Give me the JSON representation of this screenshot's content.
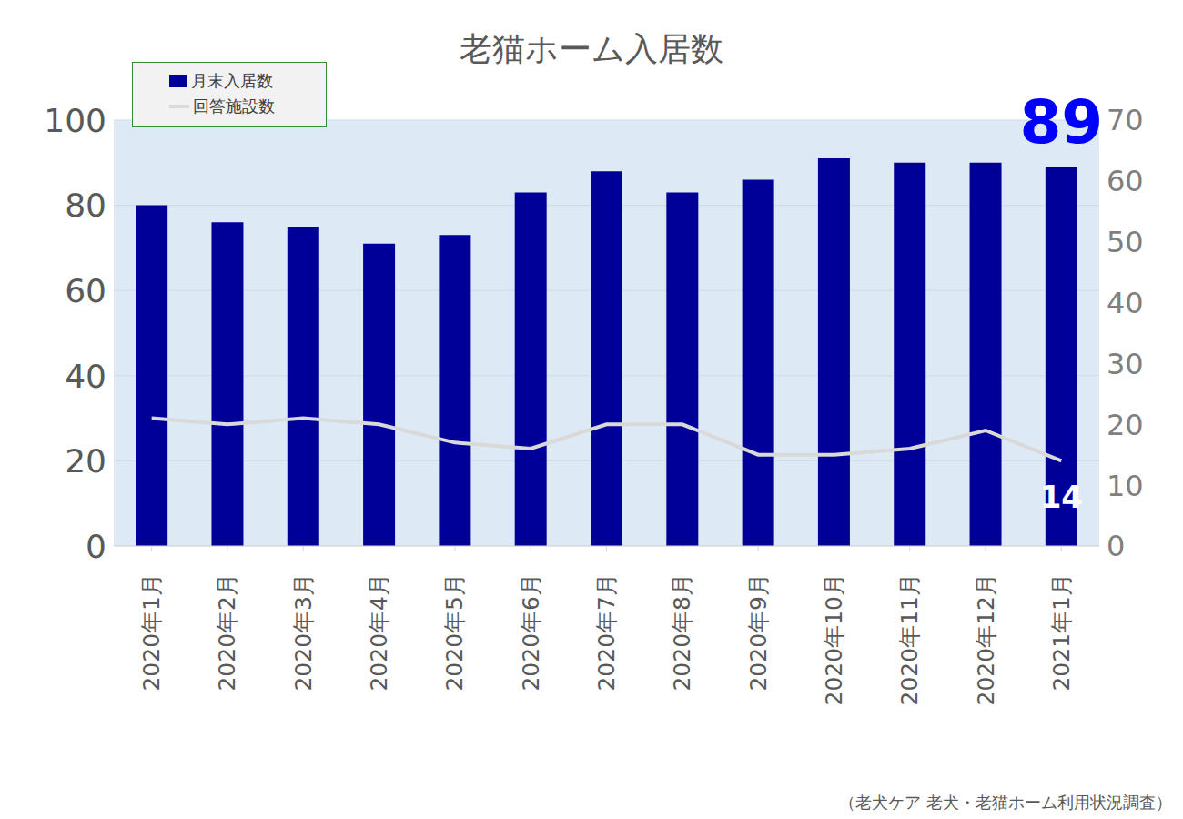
{
  "chart_data": {
    "type": "bar",
    "title": "老猫ホーム入居数",
    "categories": [
      "2020年1月",
      "2020年2月",
      "2020年3月",
      "2020年4月",
      "2020年5月",
      "2020年6月",
      "2020年7月",
      "2020年8月",
      "2020年9月",
      "2020年10月",
      "2020年11月",
      "2020年12月",
      "2021年1月"
    ],
    "series": [
      {
        "name": "月末入居数",
        "type": "bar",
        "color": "#000099",
        "values": [
          80,
          76,
          75,
          71,
          73,
          83,
          88,
          83,
          86,
          91,
          90,
          90,
          89
        ]
      },
      {
        "name": "回答施設数",
        "type": "line",
        "color": "#d9d9d9",
        "axis": "y2",
        "values": [
          21,
          20,
          21,
          20,
          17,
          16,
          20,
          20,
          15,
          15,
          16,
          19,
          14
        ]
      }
    ],
    "ylim": [
      0,
      100
    ],
    "yticks": [
      0,
      20,
      40,
      60,
      80,
      100
    ],
    "y2lim": [
      0,
      70
    ],
    "y2ticks": [
      0,
      10,
      20,
      30,
      40,
      50,
      60,
      70
    ],
    "grid": true,
    "legend": "upper left",
    "annotations": [
      {
        "text": "89",
        "series": "月末入居数",
        "category": "2021年1月"
      },
      {
        "text": "14",
        "series": "回答施設数",
        "category": "2021年1月"
      }
    ],
    "source": "（老犬ケア 老犬・老猫ホーム利用状況調査）"
  }
}
